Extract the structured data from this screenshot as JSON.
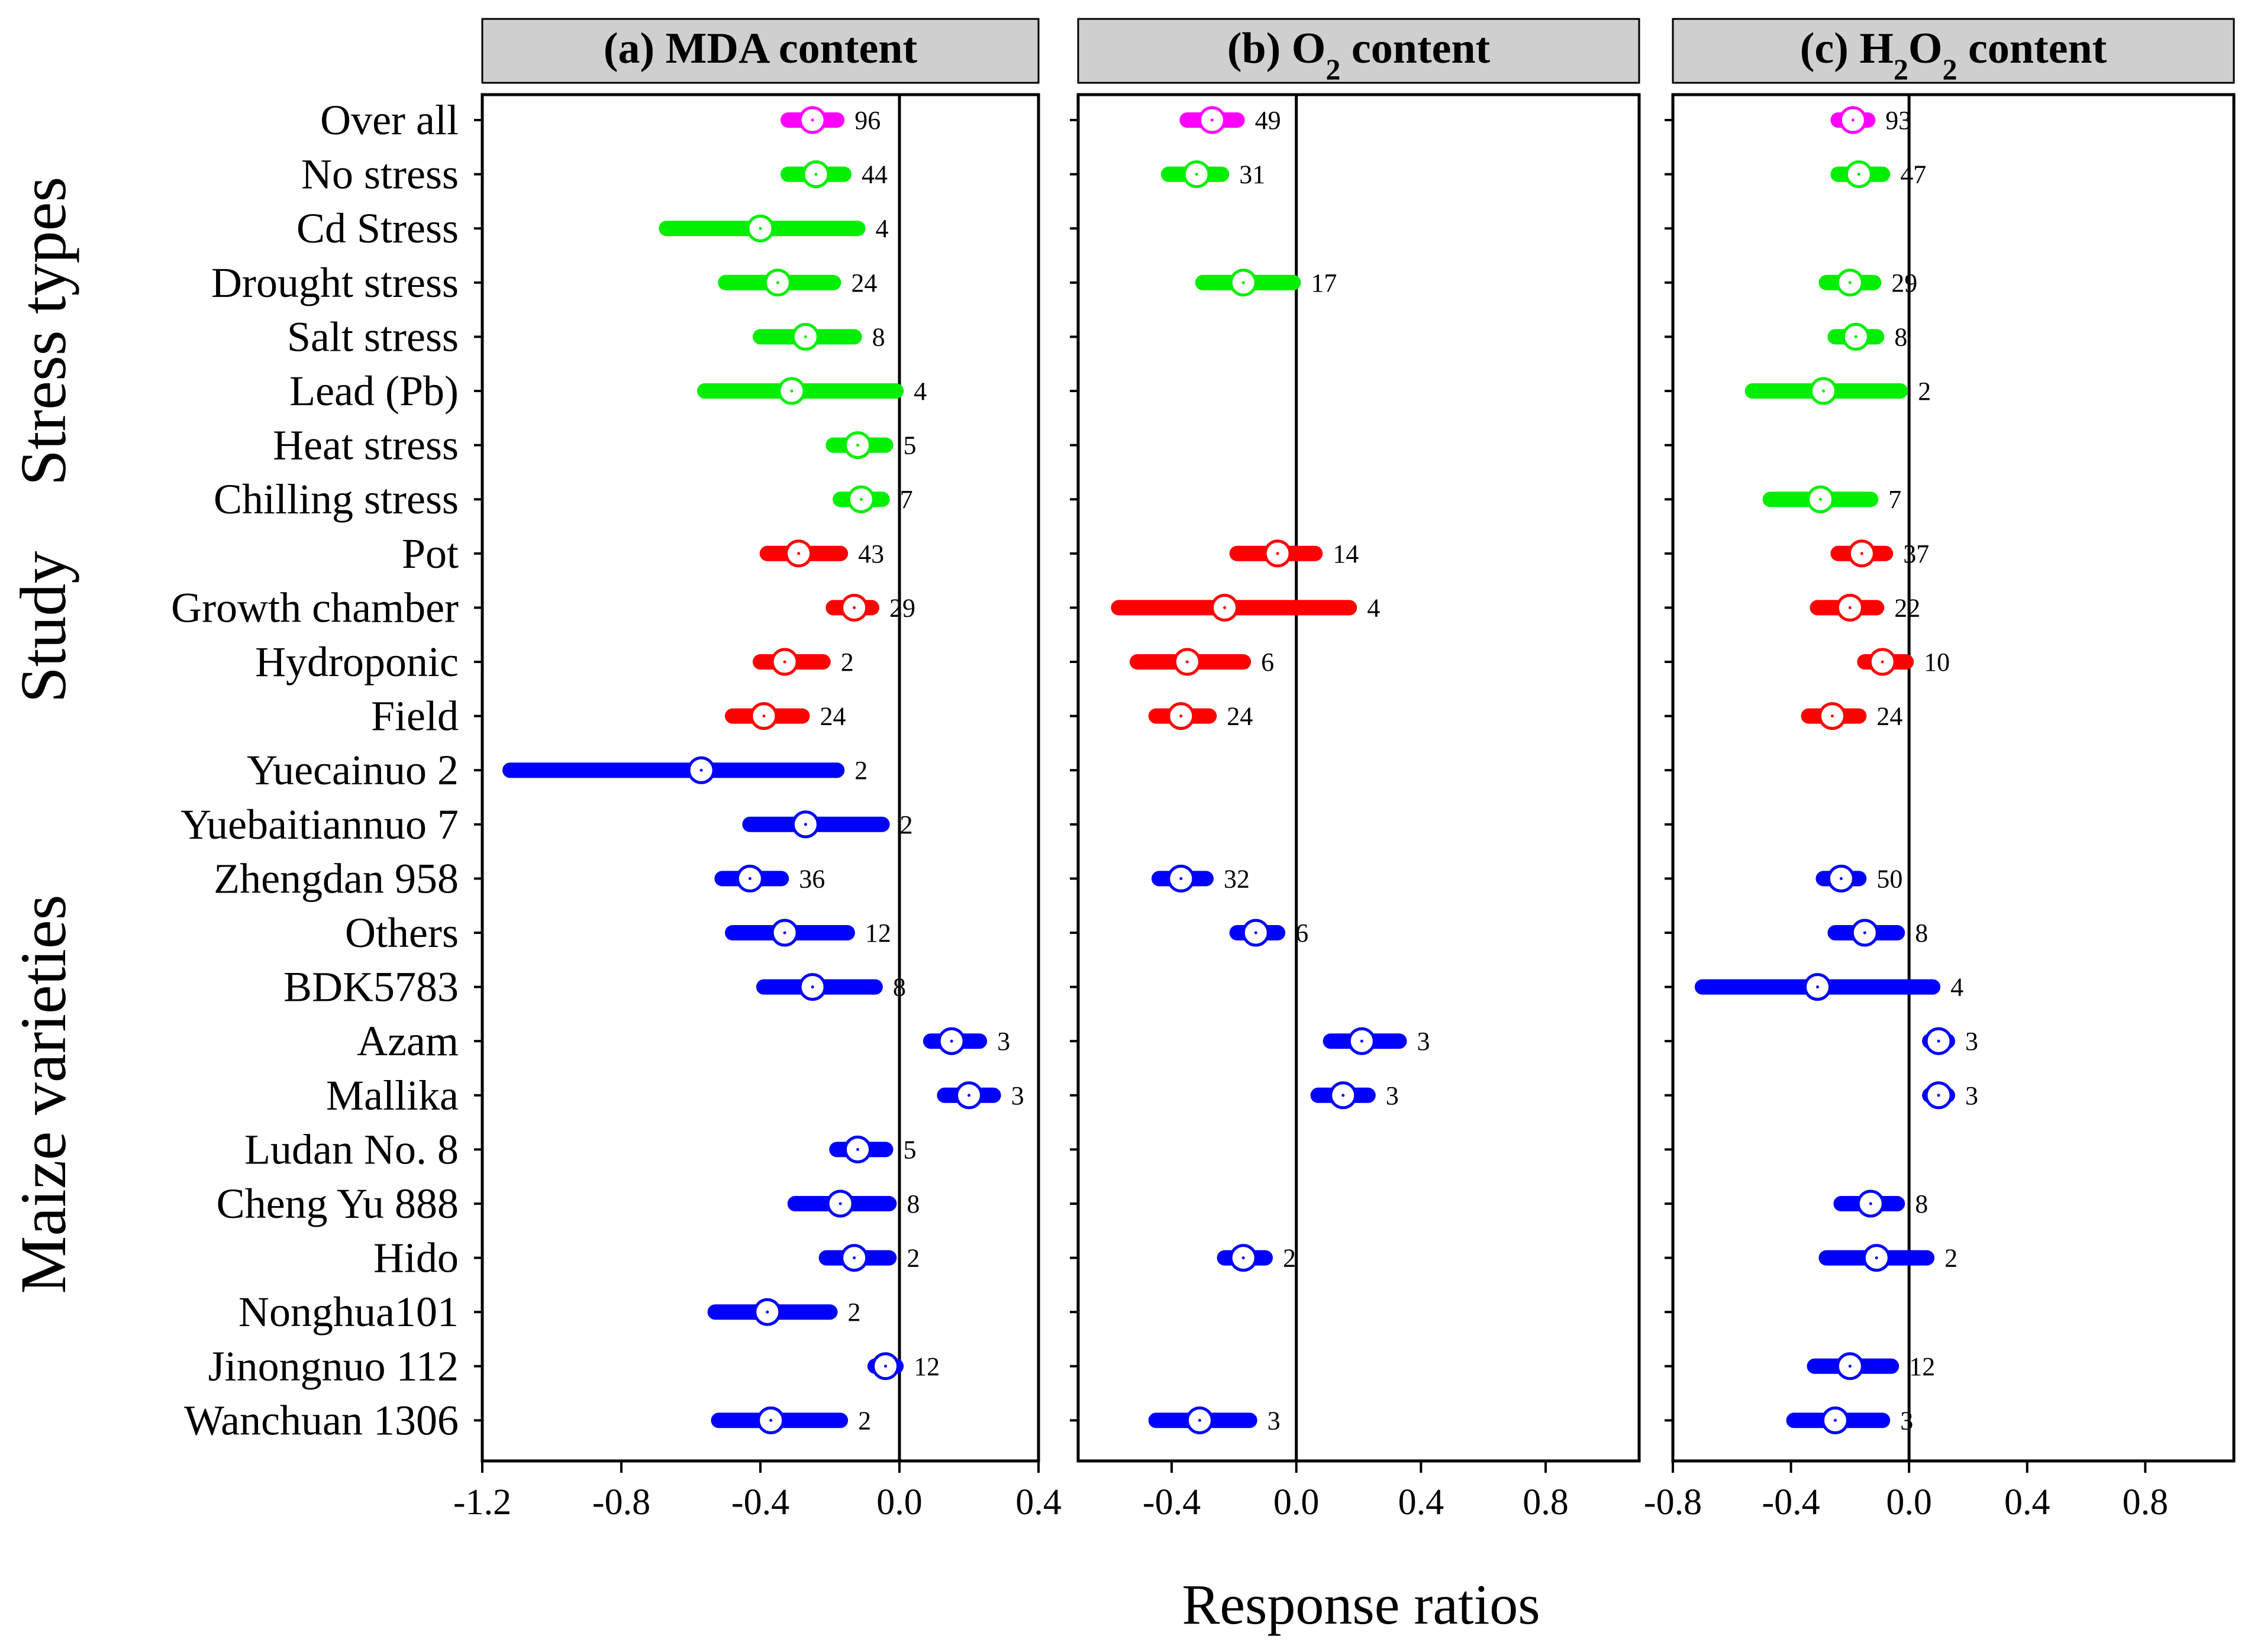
{
  "categories": [
    "Over all",
    "No stress",
    "Cd Stress",
    "Drought stress",
    "Salt stress",
    "Lead (Pb)",
    "Heat stress",
    "Chilling stress",
    "Pot",
    "Growth chamber",
    "Hydroponic",
    "Field",
    "Yuecainuo 2",
    "Yuebaitiannuo 7",
    "Zhengdan 958",
    "Others",
    "BDK5783",
    "Azam",
    "Mallika",
    "Ludan No. 8",
    "Cheng Yu 888",
    "Hido",
    "Nonghua101",
    "Jinongnuo 112",
    "Wanchuan 1306"
  ],
  "groups": [
    {
      "label": "Stress types",
      "color": "#00ee00",
      "from": 0,
      "to": 7
    },
    {
      "label": "Study",
      "color": "#ff0000",
      "from": 8,
      "to": 11
    },
    {
      "label": "Maize varieties",
      "color": "#0000ff",
      "from": 12,
      "to": 24
    }
  ],
  "overall_color": "#ff00ff",
  "x_axis_label": "Response ratios",
  "chart_data": [
    {
      "type": "forest",
      "title_parts": [
        {
          "t": "(a) MDA content"
        }
      ],
      "xlim": [
        -1.2,
        0.4
      ],
      "xticks": [
        -1.2,
        -0.8,
        -0.4,
        0.0,
        0.4
      ],
      "xtick_labels": [
        "-1.2",
        "-0.8",
        "-0.4",
        "0.0",
        "0.4"
      ],
      "points": [
        {
          "mean": -0.25,
          "low": -0.32,
          "high": -0.18,
          "n": "96"
        },
        {
          "mean": -0.24,
          "low": -0.32,
          "high": -0.16,
          "n": "44"
        },
        {
          "mean": -0.4,
          "low": -0.67,
          "high": -0.12,
          "n": "4"
        },
        {
          "mean": -0.35,
          "low": -0.5,
          "high": -0.19,
          "n": "24"
        },
        {
          "mean": -0.27,
          "low": -0.4,
          "high": -0.13,
          "n": "8"
        },
        {
          "mean": -0.31,
          "low": -0.56,
          "high": -0.01,
          "n": "4"
        },
        {
          "mean": -0.12,
          "low": -0.19,
          "high": -0.04,
          "n": "5"
        },
        {
          "mean": -0.11,
          "low": -0.17,
          "high": -0.05,
          "n": "7"
        },
        {
          "mean": -0.29,
          "low": -0.38,
          "high": -0.17,
          "n": "43"
        },
        {
          "mean": -0.13,
          "low": -0.19,
          "high": -0.08,
          "n": "29"
        },
        {
          "mean": -0.33,
          "low": -0.4,
          "high": -0.22,
          "n": "2"
        },
        {
          "mean": -0.39,
          "low": -0.48,
          "high": -0.28,
          "n": "24"
        },
        {
          "mean": -0.57,
          "low": -1.12,
          "high": -0.18,
          "n": "2"
        },
        {
          "mean": -0.27,
          "low": -0.43,
          "high": -0.05,
          "n": "2"
        },
        {
          "mean": -0.43,
          "low": -0.51,
          "high": -0.34,
          "n": "36"
        },
        {
          "mean": -0.33,
          "low": -0.48,
          "high": -0.15,
          "n": "12"
        },
        {
          "mean": -0.25,
          "low": -0.39,
          "high": -0.07,
          "n": "8"
        },
        {
          "mean": 0.15,
          "low": 0.09,
          "high": 0.23,
          "n": "3"
        },
        {
          "mean": 0.2,
          "low": 0.13,
          "high": 0.27,
          "n": "3"
        },
        {
          "mean": -0.12,
          "low": -0.18,
          "high": -0.04,
          "n": "5"
        },
        {
          "mean": -0.17,
          "low": -0.3,
          "high": -0.03,
          "n": "8"
        },
        {
          "mean": -0.13,
          "low": -0.21,
          "high": -0.03,
          "n": "2"
        },
        {
          "mean": -0.38,
          "low": -0.53,
          "high": -0.2,
          "n": "2"
        },
        {
          "mean": -0.04,
          "low": -0.07,
          "high": -0.01,
          "n": "12"
        },
        {
          "mean": -0.37,
          "low": -0.52,
          "high": -0.17,
          "n": "2"
        }
      ]
    },
    {
      "type": "forest",
      "title_parts": [
        {
          "t": "(b) O"
        },
        {
          "t": "2",
          "sub": true
        },
        {
          "t": " content"
        }
      ],
      "xlim": [
        -0.7,
        1.1
      ],
      "xticks": [
        -0.4,
        0.0,
        0.4,
        0.8
      ],
      "xtick_labels": [
        "-0.4",
        "0.0",
        "0.4",
        "0.8"
      ],
      "points": [
        {
          "mean": -0.27,
          "low": -0.35,
          "high": -0.19,
          "n": "49"
        },
        {
          "mean": -0.32,
          "low": -0.41,
          "high": -0.24,
          "n": "31"
        },
        null,
        {
          "mean": -0.17,
          "low": -0.3,
          "high": -0.01,
          "n": "17"
        },
        null,
        null,
        null,
        null,
        {
          "mean": -0.06,
          "low": -0.19,
          "high": 0.06,
          "n": "14"
        },
        {
          "mean": -0.23,
          "low": -0.57,
          "high": 0.17,
          "n": "4"
        },
        {
          "mean": -0.35,
          "low": -0.51,
          "high": -0.17,
          "n": "6"
        },
        {
          "mean": -0.37,
          "low": -0.45,
          "high": -0.28,
          "n": "24"
        },
        null,
        null,
        {
          "mean": -0.37,
          "low": -0.44,
          "high": -0.29,
          "n": "32"
        },
        {
          "mean": -0.13,
          "low": -0.19,
          "high": -0.06,
          "n": "6"
        },
        null,
        {
          "mean": 0.21,
          "low": 0.11,
          "high": 0.33,
          "n": "3"
        },
        {
          "mean": 0.15,
          "low": 0.07,
          "high": 0.23,
          "n": "3"
        },
        null,
        null,
        {
          "mean": -0.17,
          "low": -0.23,
          "high": -0.1,
          "n": "2"
        },
        null,
        null,
        {
          "mean": -0.31,
          "low": -0.45,
          "high": -0.15,
          "n": "3"
        }
      ]
    },
    {
      "type": "forest",
      "title_parts": [
        {
          "t": "(c) H"
        },
        {
          "t": "2",
          "sub": true
        },
        {
          "t": "O"
        },
        {
          "t": "2",
          "sub": true
        },
        {
          "t": " content"
        }
      ],
      "xlim": [
        -0.8,
        1.1
      ],
      "xticks": [
        -0.8,
        -0.4,
        0.0,
        0.4,
        0.8
      ],
      "xtick_labels": [
        "-0.8",
        "-0.4",
        "0.0",
        "0.4",
        "0.8"
      ],
      "points": [
        {
          "mean": -0.19,
          "low": -0.24,
          "high": -0.14,
          "n": "93"
        },
        {
          "mean": -0.17,
          "low": -0.24,
          "high": -0.09,
          "n": "47"
        },
        null,
        {
          "mean": -0.2,
          "low": -0.28,
          "high": -0.12,
          "n": "29"
        },
        {
          "mean": -0.18,
          "low": -0.25,
          "high": -0.11,
          "n": "8"
        },
        {
          "mean": -0.29,
          "low": -0.53,
          "high": -0.03,
          "n": "2"
        },
        null,
        {
          "mean": -0.3,
          "low": -0.47,
          "high": -0.13,
          "n": "7"
        },
        {
          "mean": -0.16,
          "low": -0.24,
          "high": -0.08,
          "n": "37"
        },
        {
          "mean": -0.2,
          "low": -0.31,
          "high": -0.11,
          "n": "22"
        },
        {
          "mean": -0.09,
          "low": -0.15,
          "high": -0.01,
          "n": "10"
        },
        {
          "mean": -0.26,
          "low": -0.34,
          "high": -0.17,
          "n": "24"
        },
        null,
        null,
        {
          "mean": -0.23,
          "low": -0.29,
          "high": -0.17,
          "n": "50"
        },
        {
          "mean": -0.15,
          "low": -0.25,
          "high": -0.04,
          "n": "8"
        },
        {
          "mean": -0.31,
          "low": -0.7,
          "high": 0.08,
          "n": "4"
        },
        {
          "mean": 0.1,
          "low": 0.07,
          "high": 0.13,
          "n": "3"
        },
        {
          "mean": 0.1,
          "low": 0.07,
          "high": 0.13,
          "n": "3"
        },
        null,
        {
          "mean": -0.13,
          "low": -0.23,
          "high": -0.04,
          "n": "8"
        },
        {
          "mean": -0.11,
          "low": -0.28,
          "high": 0.06,
          "n": "2"
        },
        null,
        {
          "mean": -0.2,
          "low": -0.32,
          "high": -0.06,
          "n": "12"
        },
        {
          "mean": -0.25,
          "low": -0.39,
          "high": -0.09,
          "n": "3"
        }
      ]
    }
  ]
}
